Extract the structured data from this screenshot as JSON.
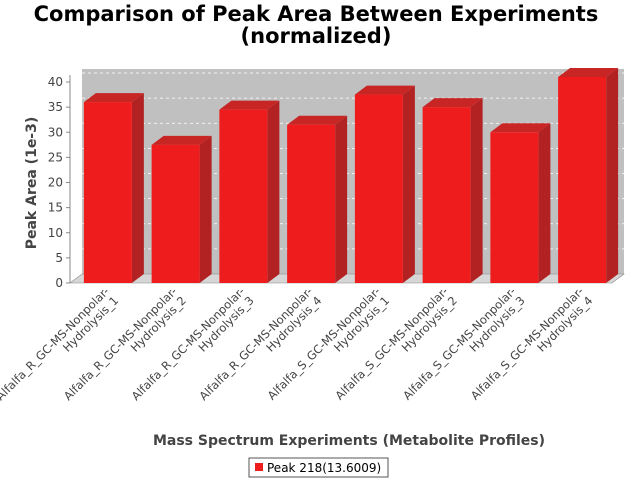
{
  "chart_data": {
    "type": "bar",
    "title": "Comparison of Peak Area Between Experiments",
    "subtitle": "(normalized)",
    "xlabel": "Mass Spectrum Experiments (Metabolite Profiles)",
    "ylabel": "Peak Area (1e-3)",
    "ylim": [
      0,
      40
    ],
    "yticks": [
      0,
      5,
      10,
      15,
      20,
      25,
      30,
      35,
      40
    ],
    "grid": true,
    "legend_position": "bottom",
    "categories": [
      [
        "Alfalfa_R_GC-MS-Nonpolar-",
        "Hydrolysis_1"
      ],
      [
        "Alfalfa_R_GC-MS-Nonpolar-",
        "Hydrolysis_2"
      ],
      [
        "Alfalfa_R_GC-MS-Nonpolar-",
        "Hydrolysis_3"
      ],
      [
        "Alfalfa_R_GC-MS-Nonpolar-",
        "Hydrolysis_4"
      ],
      [
        "Alfalfa_S_GC-MS-Nonpolar-",
        "Hydrolysis_1"
      ],
      [
        "Alfalfa_S_GC-MS-Nonpolar-",
        "Hydrolysis_2"
      ],
      [
        "Alfalfa_S_GC-MS-Nonpolar-",
        "Hydrolysis_3"
      ],
      [
        "Alfalfa_S_GC-MS-Nonpolar-",
        "Hydrolysis_4"
      ]
    ],
    "series": [
      {
        "name": "Peak 218(13.6009)",
        "color": "#ee1c1c",
        "values": [
          36.0,
          27.5,
          34.5,
          31.5,
          37.5,
          35.0,
          30.0,
          41.0
        ]
      }
    ]
  }
}
